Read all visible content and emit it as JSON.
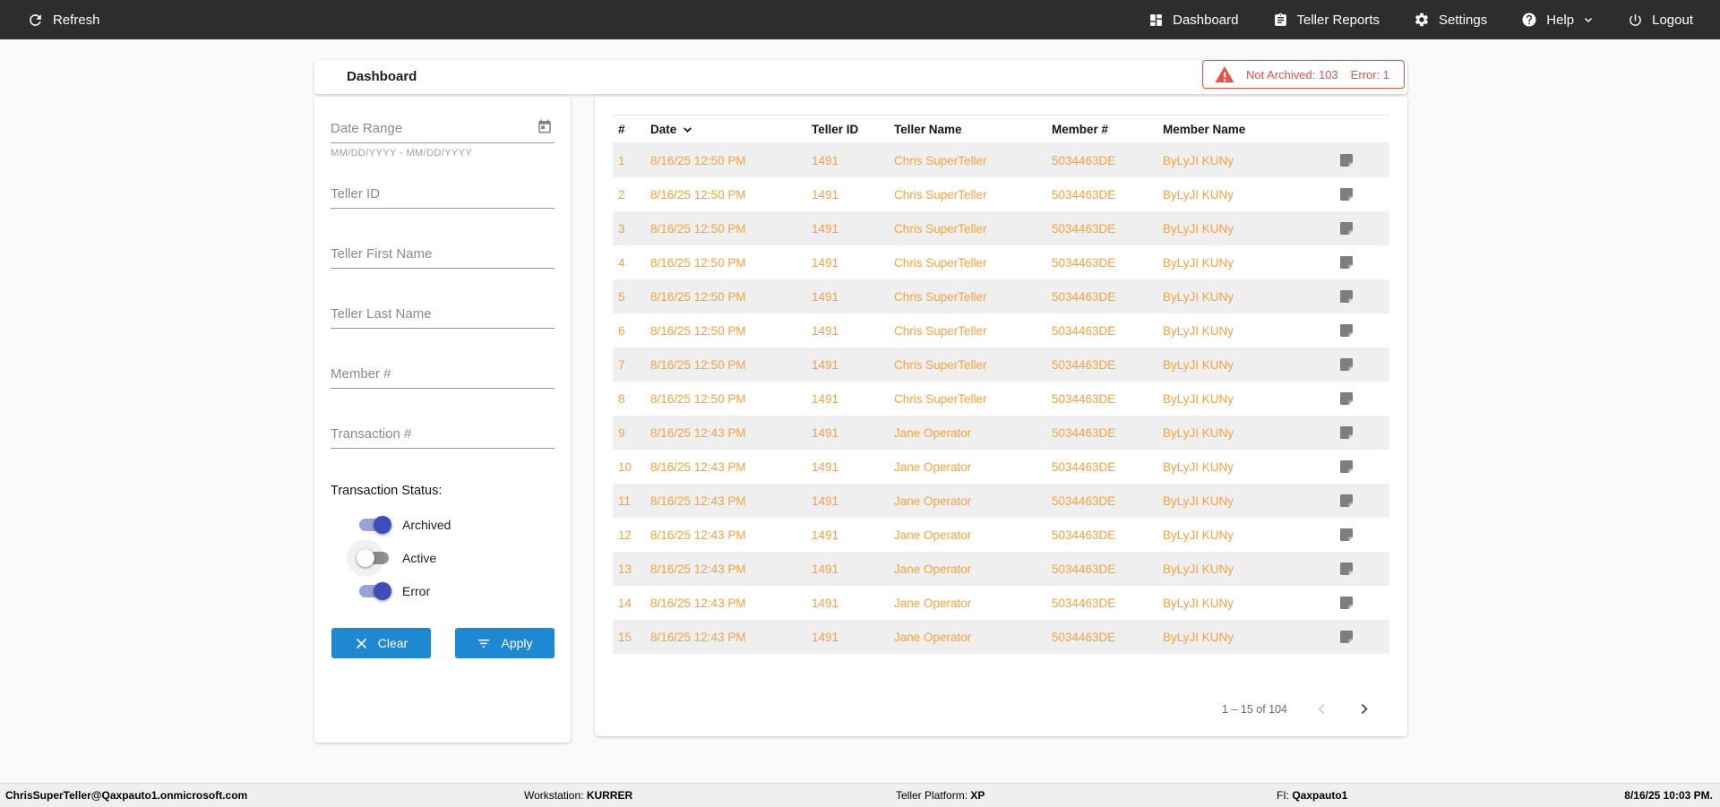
{
  "nav": {
    "refresh_label": "Refresh",
    "items": [
      {
        "label": "Dashboard"
      },
      {
        "label": "Teller Reports"
      },
      {
        "label": "Settings"
      },
      {
        "label": "Help"
      },
      {
        "label": "Logout"
      }
    ]
  },
  "header": {
    "title": "Dashboard",
    "alert": {
      "not_archived_label": "Not Archived: 103",
      "error_label": "Error: 1",
      "color": "#e7524b"
    }
  },
  "filters": {
    "date_range": {
      "placeholder": "Date Range",
      "helper": "MM/DD/YYYY - MM/DD/YYYY",
      "value": ""
    },
    "fields": [
      {
        "placeholder": "Teller ID",
        "value": ""
      },
      {
        "placeholder": "Teller First Name",
        "value": ""
      },
      {
        "placeholder": "Teller Last Name",
        "value": ""
      },
      {
        "placeholder": "Member #",
        "value": ""
      },
      {
        "placeholder": "Transaction #",
        "value": ""
      }
    ],
    "status_label": "Transaction Status:",
    "toggles": [
      {
        "label": "Archived",
        "on": true,
        "halo": false
      },
      {
        "label": "Active",
        "on": false,
        "halo": true
      },
      {
        "label": "Error",
        "on": true,
        "halo": false
      }
    ],
    "clear_label": "Clear",
    "apply_label": "Apply"
  },
  "table": {
    "columns": [
      "#",
      "Date",
      "Teller ID",
      "Teller Name",
      "Member #",
      "Member Name"
    ],
    "sorted_by": "Date",
    "sort_direction": "desc",
    "rows": [
      {
        "num": "1",
        "date": "8/16/25 12:50 PM",
        "teller_id": "1491",
        "teller_name": "Chris SuperTeller",
        "member_num": "5034463DE",
        "member_name": "ByLyJI KUNy"
      },
      {
        "num": "2",
        "date": "8/16/25 12:50 PM",
        "teller_id": "1491",
        "teller_name": "Chris SuperTeller",
        "member_num": "5034463DE",
        "member_name": "ByLyJI KUNy"
      },
      {
        "num": "3",
        "date": "8/16/25 12:50 PM",
        "teller_id": "1491",
        "teller_name": "Chris SuperTeller",
        "member_num": "5034463DE",
        "member_name": "ByLyJI KUNy"
      },
      {
        "num": "4",
        "date": "8/16/25 12:50 PM",
        "teller_id": "1491",
        "teller_name": "Chris SuperTeller",
        "member_num": "5034463DE",
        "member_name": "ByLyJI KUNy"
      },
      {
        "num": "5",
        "date": "8/16/25 12:50 PM",
        "teller_id": "1491",
        "teller_name": "Chris SuperTeller",
        "member_num": "5034463DE",
        "member_name": "ByLyJI KUNy"
      },
      {
        "num": "6",
        "date": "8/16/25 12:50 PM",
        "teller_id": "1491",
        "teller_name": "Chris SuperTeller",
        "member_num": "5034463DE",
        "member_name": "ByLyJI KUNy"
      },
      {
        "num": "7",
        "date": "8/16/25 12:50 PM",
        "teller_id": "1491",
        "teller_name": "Chris SuperTeller",
        "member_num": "5034463DE",
        "member_name": "ByLyJI KUNy"
      },
      {
        "num": "8",
        "date": "8/16/25 12:50 PM",
        "teller_id": "1491",
        "teller_name": "Chris SuperTeller",
        "member_num": "5034463DE",
        "member_name": "ByLyJI KUNy"
      },
      {
        "num": "9",
        "date": "8/16/25 12:43 PM",
        "teller_id": "1491",
        "teller_name": "Jane Operator",
        "member_num": "5034463DE",
        "member_name": "ByLyJI KUNy"
      },
      {
        "num": "10",
        "date": "8/16/25 12:43 PM",
        "teller_id": "1491",
        "teller_name": "Jane Operator",
        "member_num": "5034463DE",
        "member_name": "ByLyJI KUNy"
      },
      {
        "num": "11",
        "date": "8/16/25 12:43 PM",
        "teller_id": "1491",
        "teller_name": "Jane Operator",
        "member_num": "5034463DE",
        "member_name": "ByLyJI KUNy"
      },
      {
        "num": "12",
        "date": "8/16/25 12:43 PM",
        "teller_id": "1491",
        "teller_name": "Jane Operator",
        "member_num": "5034463DE",
        "member_name": "ByLyJI KUNy"
      },
      {
        "num": "13",
        "date": "8/16/25 12:43 PM",
        "teller_id": "1491",
        "teller_name": "Jane Operator",
        "member_num": "5034463DE",
        "member_name": "ByLyJI KUNy"
      },
      {
        "num": "14",
        "date": "8/16/25 12:43 PM",
        "teller_id": "1491",
        "teller_name": "Jane Operator",
        "member_num": "5034463DE",
        "member_name": "ByLyJI KUNy"
      },
      {
        "num": "15",
        "date": "8/16/25 12:43 PM",
        "teller_id": "1491",
        "teller_name": "Jane Operator",
        "member_num": "5034463DE",
        "member_name": "ByLyJI KUNy"
      }
    ],
    "row_text_color": "#f8a23c",
    "pagination": {
      "range_label": "1 – 15 of 104"
    }
  },
  "footer": {
    "user_email": "ChrisSuperTeller@Qaxpauto1.onmicrosoft.com",
    "workstation_label": "Workstation:",
    "workstation_value": "KURRER",
    "platform_label": "Teller Platform:",
    "platform_value": "XP",
    "fi_label": "FI:",
    "fi_value": "Qaxpauto1",
    "datetime": "8/16/25 10:03 PM."
  }
}
